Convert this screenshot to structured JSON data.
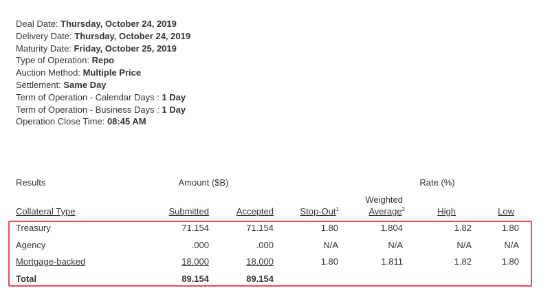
{
  "details": [
    {
      "label": "Deal Date: ",
      "value": "Thursday, October 24, 2019"
    },
    {
      "label": "Delivery Date: ",
      "value": "Thursday, October 24, 2019"
    },
    {
      "label": "Maturity Date: ",
      "value": "Friday, October 25, 2019"
    },
    {
      "label": "Type of Operation: ",
      "value": "Repo"
    },
    {
      "label": "Auction Method: ",
      "value": "Multiple Price"
    },
    {
      "label": "Settlement: ",
      "value": "Same Day"
    },
    {
      "label": "Term of Operation - Calendar Days : ",
      "value": "1 Day"
    },
    {
      "label": "Term of Operation - Business Days : ",
      "value": "1 Day"
    },
    {
      "label": "Operation Close Time: ",
      "value": "08:45 AM"
    }
  ],
  "results": {
    "results_label": "Results",
    "amount_group": "Amount ($B)",
    "rate_group": "Rate (%)",
    "headers": {
      "collateral_type": "Collateral Type",
      "submitted": "Submitted",
      "accepted": "Accepted",
      "stop_out": "Stop-Out",
      "stop_out_sup": "1",
      "weighted": "Weighted",
      "average": "Average",
      "average_sup": "2",
      "high": "High",
      "low": "Low"
    },
    "rows": [
      {
        "type": "Treasury",
        "submitted": "71.154",
        "accepted": "71.154",
        "stop_out": "1.80",
        "weighted_average": "1.804",
        "high": "1.82",
        "low": "1.80"
      },
      {
        "type": "Agency",
        "submitted": ".000",
        "accepted": ".000",
        "stop_out": "N/A",
        "weighted_average": "N/A",
        "high": "N/A",
        "low": "N/A"
      },
      {
        "type": "Mortgage-backed",
        "submitted": "18.000",
        "accepted": "18.000",
        "stop_out": "1.80",
        "weighted_average": "1.811",
        "high": "1.82",
        "low": "1.80"
      }
    ],
    "total": {
      "label": "Total",
      "submitted": "89.154",
      "accepted": "89.154"
    }
  },
  "colors": {
    "highlight_border": "#e0505a",
    "text": "#333333"
  }
}
